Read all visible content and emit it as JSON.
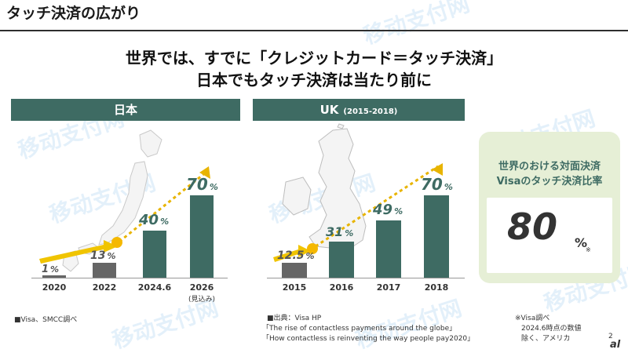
{
  "header": {
    "title": "タッチ決済の広がり"
  },
  "headline": {
    "line1": "世界では、すでに「クレジットカード＝タッチ決済」",
    "line2": "日本でもタッチ決済は当たり前に"
  },
  "japan": {
    "panel_title": "日本",
    "chart_data": {
      "type": "bar",
      "categories": [
        "2020",
        "2022",
        "2024.6",
        "2026"
      ],
      "values": [
        1,
        13,
        40,
        70
      ],
      "value_labels": [
        "1",
        "13",
        "40",
        "70"
      ],
      "unit": "%",
      "category_note": "(見込み)",
      "ylim": [
        0,
        80
      ]
    },
    "source": "■Visa、SMCC調べ"
  },
  "uk": {
    "panel_title": "UK",
    "panel_sub": "(2015-2018)",
    "chart_data": {
      "type": "bar",
      "categories": [
        "2015",
        "2016",
        "2017",
        "2018"
      ],
      "values": [
        12.5,
        31,
        49,
        70
      ],
      "value_labels": [
        "12.5",
        "31",
        "49",
        "70"
      ],
      "unit": "%",
      "ylim": [
        0,
        80
      ]
    },
    "source": {
      "line1": "■出典：Visa HP",
      "line2": "「The rise of contactless payments around the globe」",
      "line3": "「How contactless is reinventing the way people pay2020」"
    }
  },
  "visa_box": {
    "title_line1": "世界のおける対面決済",
    "title_line2": "Visaのタッチ決済比率",
    "value": "80",
    "unit": "%",
    "note_mark": "※",
    "notes": [
      "※Visa調べ",
      "2024.6時点の数値",
      "除く、アメリカ"
    ]
  },
  "footer": {
    "page": "2",
    "logo": "al"
  },
  "watermark": {
    "text": "移动支付网",
    "color": "#64aae6"
  },
  "colors": {
    "accent": "#3e6b63",
    "gray_bar": "#666666",
    "highlight_box": "#e6efd6",
    "arrow": "#e8b400"
  }
}
